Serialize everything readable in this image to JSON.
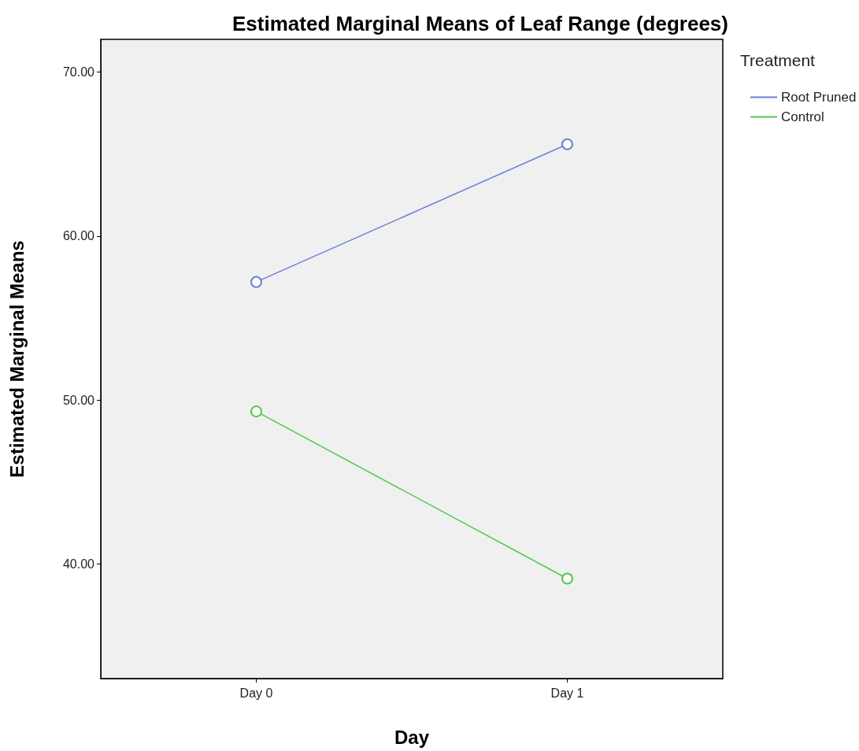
{
  "chart_data": {
    "type": "line",
    "title": "Estimated Marginal Means of Leaf Range (degrees)",
    "xlabel": "Day",
    "ylabel": "Estimated Marginal Means",
    "legend_title": "Treatment",
    "legend": "top right",
    "marker": "circle",
    "line_style": "solid",
    "categories": [
      "Day 0",
      "Day 1"
    ],
    "series": [
      {
        "name": "Root Pruned",
        "color": "#6b7fd7",
        "values": [
          57.2,
          65.6
        ]
      },
      {
        "name": "Control",
        "color": "#4dc94d",
        "values": [
          49.3,
          39.1
        ]
      }
    ],
    "ylim": [
      33,
      72
    ],
    "yticks": [
      {
        "value": 40,
        "label": "40.00"
      },
      {
        "value": 50,
        "label": "50.00"
      },
      {
        "value": 60,
        "label": "60.00"
      },
      {
        "value": 70,
        "label": "70.00"
      }
    ]
  }
}
